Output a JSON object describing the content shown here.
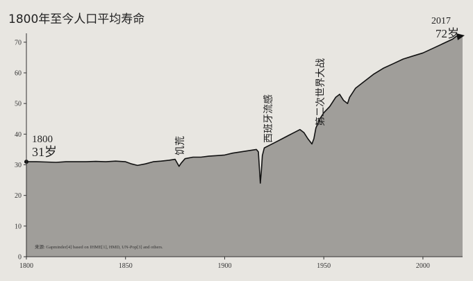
{
  "chart_data": {
    "type": "area",
    "title": "1800年至今人口平均寿命",
    "xlabel": "",
    "ylabel": "",
    "xlim": [
      1800,
      2020
    ],
    "ylim": [
      0,
      72
    ],
    "xticks": [
      1800,
      1850,
      1900,
      1950,
      2000
    ],
    "yticks": [
      0,
      10,
      20,
      30,
      40,
      50,
      60,
      70
    ],
    "grid": false,
    "legend": "none",
    "colors": {
      "area": "#a09e9a",
      "line": "#111111",
      "background": "#e8e6e1"
    },
    "x": [
      1800,
      1805,
      1810,
      1815,
      1820,
      1825,
      1830,
      1835,
      1840,
      1845,
      1850,
      1853,
      1856,
      1860,
      1864,
      1868,
      1872,
      1875,
      1877,
      1878,
      1880,
      1884,
      1888,
      1892,
      1896,
      1900,
      1904,
      1908,
      1912,
      1916,
      1917,
      1918,
      1918.5,
      1919,
      1920,
      1923,
      1926,
      1929,
      1932,
      1935,
      1938,
      1940,
      1942,
      1944,
      1945,
      1946,
      1948,
      1950,
      1953,
      1956,
      1958,
      1960,
      1962,
      1963,
      1966,
      1970,
      1975,
      1980,
      1985,
      1990,
      1995,
      2000,
      2005,
      2010,
      2015,
      2017
    ],
    "values": [
      31,
      31,
      30.9,
      30.8,
      31,
      31,
      31,
      31.1,
      31,
      31.2,
      31,
      30.3,
      29.8,
      30.3,
      31,
      31.2,
      31.5,
      31.8,
      29.5,
      30.5,
      32,
      32.5,
      32.5,
      32.8,
      33,
      33.2,
      33.8,
      34.2,
      34.6,
      35,
      34.2,
      24,
      28,
      33,
      35.5,
      36.5,
      37.5,
      38.5,
      39.5,
      40.5,
      41.5,
      40.5,
      38.5,
      36.8,
      38.5,
      42,
      45,
      47,
      49,
      52,
      53,
      51,
      50,
      52,
      55,
      57,
      59.5,
      61.5,
      63,
      64.5,
      65.5,
      66.5,
      68,
      69.5,
      71,
      72
    ],
    "annotations": [
      {
        "year": "1800",
        "value": "31岁"
      },
      {
        "label": "饥荒"
      },
      {
        "label": "西班牙流感"
      },
      {
        "label": "第二次世界大战"
      },
      {
        "year": "2017",
        "value": "72岁"
      }
    ],
    "source": "来源: Gapminder[4] based on IHME[1], HMD, UN-Pop[3] and others."
  }
}
